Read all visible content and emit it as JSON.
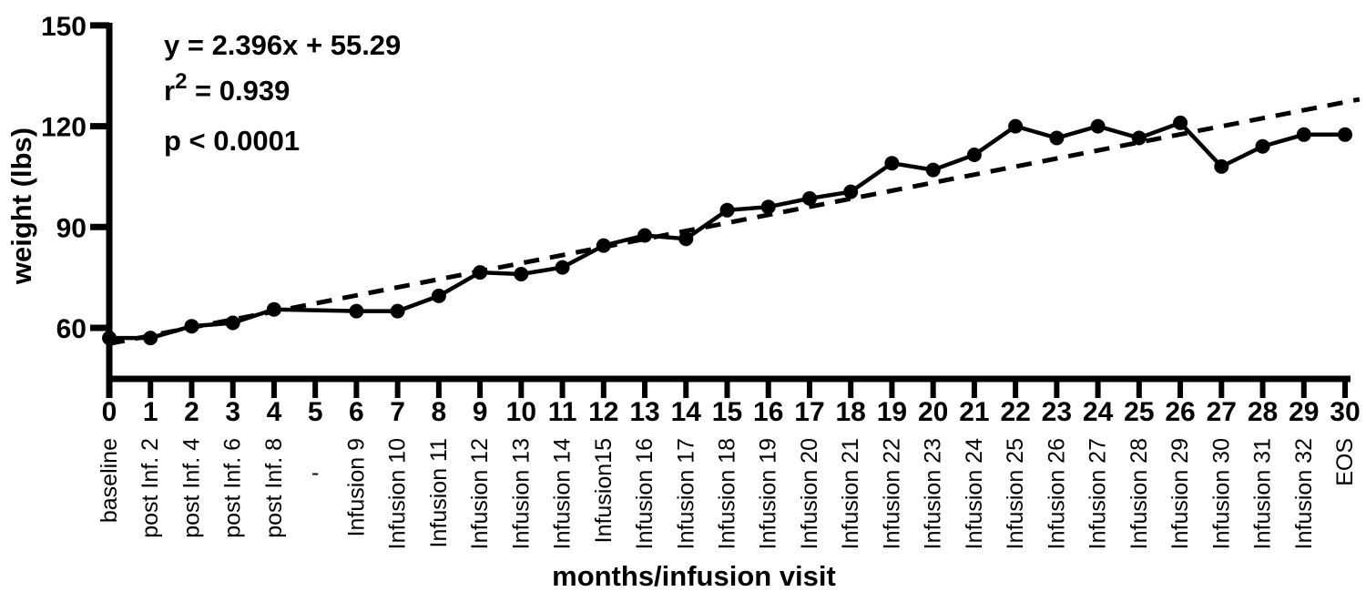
{
  "chart_data": {
    "type": "line",
    "title": "",
    "xlabel": "months/infusion visit",
    "ylabel": "weight (lbs)",
    "x": [
      0,
      1,
      2,
      3,
      4,
      5,
      6,
      7,
      8,
      9,
      10,
      11,
      12,
      13,
      14,
      15,
      16,
      17,
      18,
      19,
      20,
      21,
      22,
      23,
      24,
      25,
      26,
      27,
      28,
      29,
      30
    ],
    "x_sub_labels": [
      "baseline",
      "post Inf. 2",
      "post Inf. 4",
      "post Inf. 6",
      "post Inf. 8",
      "-",
      "Infusion 9",
      "Infusion 10",
      "Infusion 11",
      "Infusion 12",
      "Infusion 13",
      "Infusion 14",
      "Infusion15",
      "Infusion 16",
      "Infusion 17",
      "Infusion 18",
      "Infusion 19",
      "Infusion 20",
      "Infusion 21",
      "Infusion 22",
      "Infusion 23",
      "Infusion 24",
      "Infusion 25",
      "Infusion 26",
      "Infusion 27",
      "Infusion 28",
      "Infusion 29",
      "Infusion 30",
      "Infusion 31",
      "Infusion 32",
      "EOS"
    ],
    "y_ticks": [
      150,
      120,
      90,
      60
    ],
    "ylim": [
      45,
      150
    ],
    "xlim": [
      0,
      30.4
    ],
    "grid": false,
    "legend": "none",
    "series": [
      {
        "name": "weight",
        "marker": "circle",
        "line": "solid",
        "values": [
          57,
          57,
          60.5,
          61.5,
          65.5,
          null,
          65,
          65,
          69.5,
          76.5,
          76,
          78,
          84.5,
          87.5,
          86.5,
          95,
          96,
          98.5,
          100.5,
          109,
          107,
          111.5,
          120,
          116.5,
          120,
          116.5,
          121,
          108,
          114,
          117.5,
          117.5
        ]
      }
    ],
    "trend_line": {
      "style": "dashed",
      "slope": 2.396,
      "intercept": 55.29,
      "x_start": 0,
      "x_end": 30.35
    },
    "annotations": [
      "y = 2.396x + 55.29",
      "r² = 0.939",
      "p < 0.0001"
    ],
    "colors": {
      "series": "#000000",
      "trend": "#000000",
      "text": "#000000",
      "background": "#ffffff"
    }
  }
}
